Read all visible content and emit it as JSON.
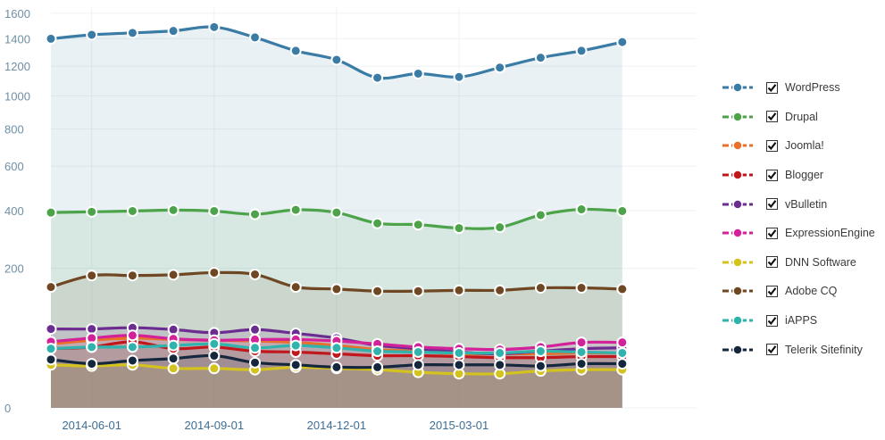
{
  "chart_data": {
    "type": "area",
    "title": "",
    "xlabel": "",
    "ylabel": "",
    "y_scale": "sqrt",
    "ylim": [
      0,
      1650
    ],
    "yticks": [
      0,
      200,
      400,
      600,
      800,
      1000,
      1200,
      1400,
      1600
    ],
    "x": [
      "2014-05-01",
      "2014-06-01",
      "2014-07-01",
      "2014-08-01",
      "2014-09-01",
      "2014-10-01",
      "2014-11-01",
      "2014-12-01",
      "2015-01-01",
      "2015-02-01",
      "2015-03-01",
      "2015-04-01",
      "2015-05-01",
      "2015-06-01",
      "2015-07-01"
    ],
    "x_tick_labels": [
      "2014-06-01",
      "2014-09-01",
      "2014-12-01",
      "2015-03-01"
    ],
    "legend_position": "right",
    "grid": true,
    "series": [
      {
        "name": "WordPress",
        "color": "#3a7ca5",
        "checked": true,
        "values": [
          1400,
          1430,
          1445,
          1460,
          1490,
          1410,
          1310,
          1245,
          1120,
          1148,
          1125,
          1190,
          1260,
          1310,
          1375
        ]
      },
      {
        "name": "Drupal",
        "color": "#4ca34a",
        "checked": true,
        "values": [
          392,
          395,
          398,
          402,
          398,
          385,
          403,
          392,
          350,
          345,
          332,
          335,
          382,
          405,
          398
        ]
      },
      {
        "name": "Joomla!",
        "color": "#e8702a",
        "checked": true,
        "values": [
          42,
          47,
          50,
          48,
          47,
          46,
          44,
          40,
          35,
          33,
          30,
          30,
          30,
          31,
          31
        ]
      },
      {
        "name": "Blogger",
        "color": "#c0161c",
        "checked": true,
        "values": [
          36,
          38,
          45,
          36,
          38,
          33,
          32,
          30,
          28,
          28,
          27,
          26,
          26,
          27,
          27
        ]
      },
      {
        "name": "vBulletin",
        "color": "#6c2d91",
        "checked": true,
        "values": [
          64,
          64,
          66,
          63,
          58,
          63,
          57,
          50,
          40,
          36,
          32,
          30,
          33,
          36,
          37
        ]
      },
      {
        "name": "ExpressionEngine",
        "color": "#d3219a",
        "checked": true,
        "values": [
          45,
          50,
          54,
          49,
          47,
          48,
          48,
          46,
          42,
          38,
          36,
          35,
          38,
          44,
          44
        ]
      },
      {
        "name": "DNN Software",
        "color": "#d4c21e",
        "checked": true,
        "values": [
          19,
          18,
          19,
          16,
          16,
          15,
          17,
          16,
          15,
          13,
          12,
          12,
          14,
          15,
          15
        ]
      },
      {
        "name": "Adobe CQ",
        "color": "#6f4722",
        "checked": true,
        "values": [
          150,
          180,
          180,
          182,
          188,
          183,
          150,
          145,
          140,
          140,
          142,
          142,
          148,
          148,
          145
        ]
      },
      {
        "name": "iAPPS",
        "color": "#30b3ad",
        "checked": true,
        "values": [
          36,
          38,
          38,
          40,
          42,
          37,
          40,
          37,
          33,
          32,
          31,
          31,
          33,
          32,
          31
        ]
      },
      {
        "name": "Telerik Sitefinity",
        "color": "#14273d",
        "checked": true,
        "values": [
          24,
          20,
          23,
          25,
          28,
          21,
          19,
          17,
          17,
          19,
          19,
          19,
          18,
          20,
          20
        ]
      }
    ]
  }
}
